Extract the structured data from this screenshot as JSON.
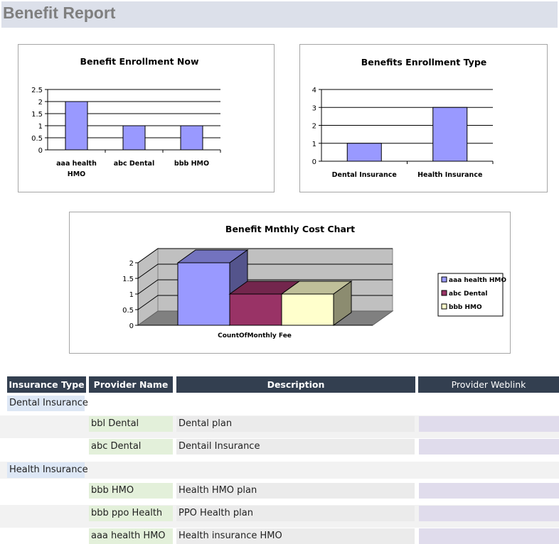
{
  "report": {
    "title": "Benefit Report"
  },
  "chart_data": [
    {
      "type": "bar",
      "title": "Benefit Enrollment Now",
      "categories": [
        "aaa health HMO",
        "abc Dental",
        "bbb HMO"
      ],
      "category_lines": [
        [
          "aaa health",
          "HMO"
        ],
        [
          "abc Dental"
        ],
        [
          "bbb HMO"
        ]
      ],
      "values": [
        2,
        1,
        1
      ],
      "ylim": [
        0,
        2.5
      ],
      "yticks": [
        "0",
        "0.5",
        "1",
        "1.5",
        "2",
        "2.5"
      ],
      "grid": true,
      "bar_color": "#9999ff"
    },
    {
      "type": "bar",
      "title": "Benefits Enrollment Type",
      "categories": [
        "Dental Insurance",
        "Health Insurance"
      ],
      "values": [
        1,
        3
      ],
      "ylim": [
        0,
        4
      ],
      "yticks": [
        "0",
        "1",
        "2",
        "3",
        "4"
      ],
      "grid": true,
      "bar_color": "#9999ff"
    },
    {
      "type": "bar",
      "style": "3d-clustered",
      "title": "Benefit Mnthly Cost Chart",
      "categories": [
        "CountOfMonthly Fee"
      ],
      "series": [
        {
          "name": "aaa health HMO",
          "values": [
            2
          ],
          "color": "#9999ff"
        },
        {
          "name": "abc Dental",
          "values": [
            1
          ],
          "color": "#993366"
        },
        {
          "name": "bbb HMO",
          "values": [
            1
          ],
          "color": "#ffffcc"
        }
      ],
      "ylim": [
        0,
        2
      ],
      "yticks": [
        "0",
        "0.5",
        "1",
        "1.5",
        "2"
      ],
      "grid": true,
      "legend": "right"
    }
  ],
  "table": {
    "headers": {
      "insurance_type": "Insurance Type",
      "provider_name": "Provider Name",
      "description": "Description",
      "provider_weblink": "Provider Weblink"
    },
    "groups": [
      {
        "insurance_type": "Dental Insurance",
        "rows": [
          {
            "provider_name": "bbl Dental",
            "description": "Dental plan",
            "weblink": ""
          },
          {
            "provider_name": "abc Dental",
            "description": "Dentail Insurance",
            "weblink": ""
          }
        ]
      },
      {
        "insurance_type": "Health Insurance",
        "rows": [
          {
            "provider_name": "bbb HMO",
            "description": "Health HMO plan",
            "weblink": ""
          },
          {
            "provider_name": "bbb ppo Health",
            "description": "PPO Health plan",
            "weblink": ""
          },
          {
            "provider_name": "aaa health HMO",
            "description": "Health insurance HMO",
            "weblink": ""
          }
        ]
      }
    ]
  },
  "colors": {
    "header_bg": "#333f50",
    "title_bar": "#dce0ea",
    "bar": "#9999ff"
  }
}
